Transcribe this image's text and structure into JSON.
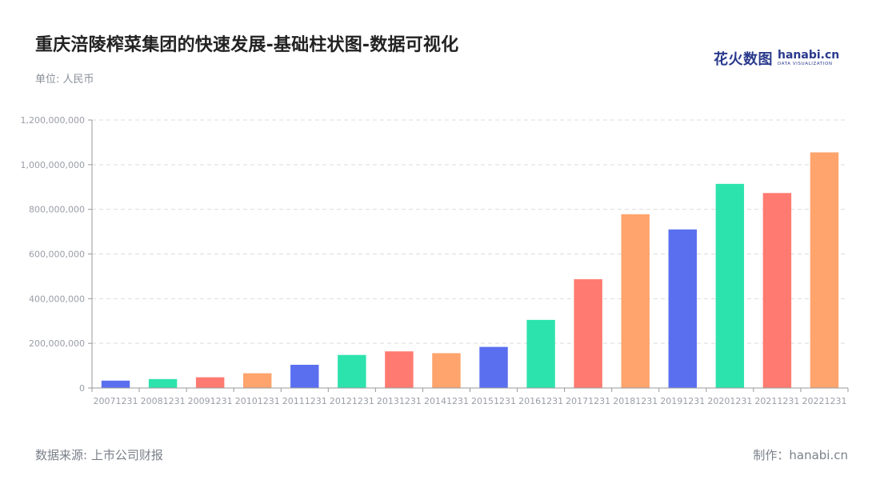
{
  "header": {
    "title": "重庆涪陵榨菜集团的快速发展-基础柱状图-数据可视化",
    "unit": "单位: 人民币"
  },
  "logo": {
    "cn": "花火数图",
    "en": "hanabi.cn",
    "sub": "DATA VISUALIZATION"
  },
  "footer": {
    "source": "数据来源: 上市公司财报",
    "maker": "制作：hanabi.cn"
  },
  "chart_data": {
    "type": "bar",
    "title": "重庆涪陵榨菜集团的快速发展-基础柱状图-数据可视化",
    "ylabel": "单位: 人民币",
    "ylim": [
      0,
      1200000000
    ],
    "yticks": [
      0,
      200000000,
      400000000,
      600000000,
      800000000,
      1000000000,
      1200000000
    ],
    "ytick_labels": [
      "0",
      "200,000,000",
      "400,000,000",
      "600,000,000",
      "800,000,000",
      "1,000,000,000",
      "1,200,000,000"
    ],
    "grid": true,
    "categories": [
      "20071231",
      "20081231",
      "20091231",
      "20101231",
      "20111231",
      "20121231",
      "20131231",
      "20141231",
      "20151231",
      "20161231",
      "20171231",
      "20181231",
      "20191231",
      "20201231",
      "20211231",
      "20221231"
    ],
    "values": [
      33000000,
      40000000,
      48000000,
      66000000,
      104000000,
      148000000,
      164000000,
      156000000,
      184000000,
      305000000,
      487000000,
      778000000,
      710000000,
      914000000,
      873000000,
      1055000000
    ],
    "colors": [
      "#5a6ff0",
      "#2de3ad",
      "#ff7a70",
      "#ffa46c",
      "#5a6ff0",
      "#2de3ad",
      "#ff7a70",
      "#ffa46c",
      "#5a6ff0",
      "#2de3ad",
      "#ff7a70",
      "#ffa46c",
      "#5a6ff0",
      "#2de3ad",
      "#ff7a70",
      "#ffa46c"
    ]
  }
}
